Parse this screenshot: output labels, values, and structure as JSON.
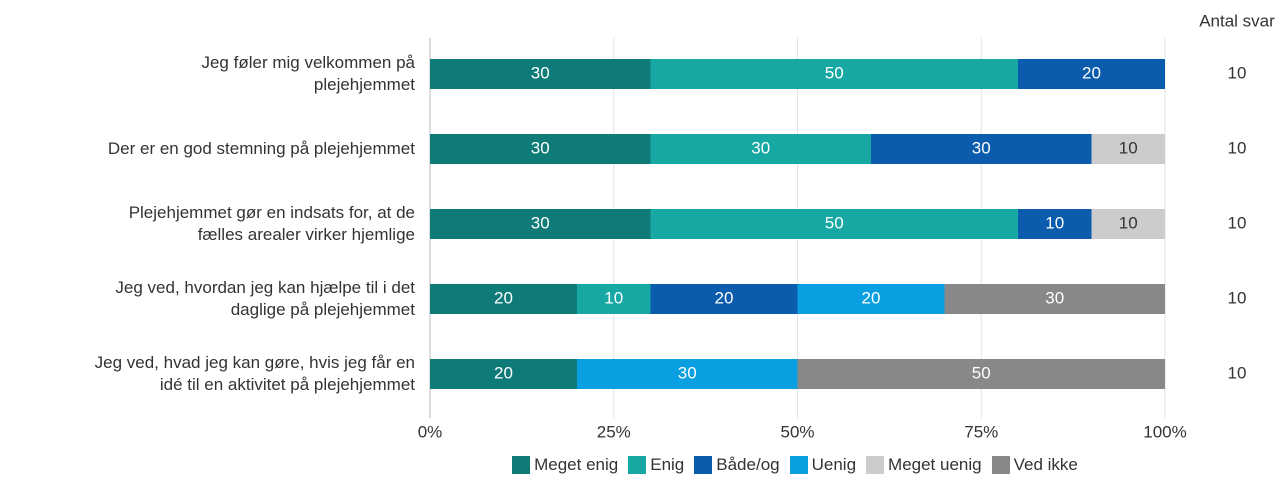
{
  "chart_data": {
    "type": "stacked_barh",
    "categories": [
      "Jeg føler mig velkommen på\nplejehjemmet",
      "Der er en god stemning på plejehjemmet",
      "Plejehjemmet gør en indsats for, at de\nfælles arealer virker hjemlige",
      "Jeg ved, hvordan jeg kan hjælpe til i det\ndaglige på plejehjemmet",
      "Jeg ved, hvad jeg kan gøre, hvis jeg får en\nidé til en aktivitet på plejehjemmet"
    ],
    "series": [
      {
        "name": "Meget enig",
        "color": "#0f7b78",
        "values": [
          30,
          30,
          30,
          20,
          20
        ]
      },
      {
        "name": "Enig",
        "color": "#17a8a3",
        "values": [
          50,
          30,
          50,
          10,
          0
        ]
      },
      {
        "name": "Både/og",
        "color": "#0b5cad",
        "values": [
          20,
          30,
          10,
          20,
          0
        ]
      },
      {
        "name": "Uenig",
        "color": "#0a9fe0",
        "values": [
          0,
          0,
          0,
          20,
          30
        ]
      },
      {
        "name": "Meget uenig",
        "color": "#cccccc",
        "values": [
          0,
          10,
          10,
          0,
          0
        ]
      },
      {
        "name": "Ved ikke",
        "color": "#888888",
        "values": [
          0,
          0,
          0,
          30,
          50
        ]
      }
    ],
    "counts": {
      "title": "Antal svar",
      "values": [
        10,
        10,
        10,
        10,
        10
      ]
    },
    "xlim": [
      0,
      100
    ],
    "xticks": [
      {
        "value": 0,
        "label": "0%"
      },
      {
        "value": 25,
        "label": "25%"
      },
      {
        "value": 50,
        "label": "50%"
      },
      {
        "value": 75,
        "label": "75%"
      },
      {
        "value": 100,
        "label": "100%"
      }
    ],
    "grid": true
  }
}
